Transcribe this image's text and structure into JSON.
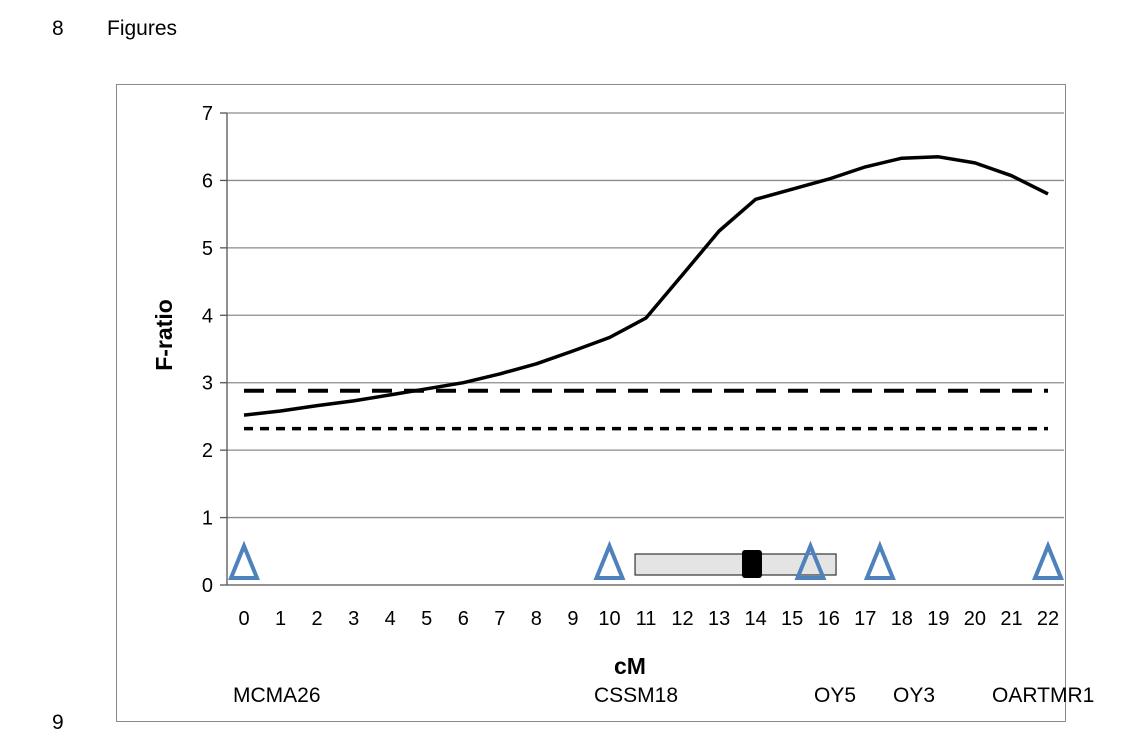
{
  "page": {
    "line_numbers": [
      "8",
      "9"
    ],
    "heading": "Figures"
  },
  "colors": {
    "line": "#000000",
    "grid": "#8c8c8c",
    "marker": "#4f81bd",
    "interval_fill": "#e4e4e4",
    "interval_stroke": "#333333"
  },
  "chart_data": {
    "type": "line",
    "xlabel": "cM",
    "ylabel": "F-ratio",
    "xlim": [
      0,
      22
    ],
    "ylim": [
      0,
      7
    ],
    "x_ticks": [
      0,
      1,
      2,
      3,
      4,
      5,
      6,
      7,
      8,
      9,
      10,
      11,
      12,
      13,
      14,
      15,
      16,
      17,
      18,
      19,
      20,
      21,
      22
    ],
    "y_ticks": [
      0,
      1,
      2,
      3,
      4,
      5,
      6,
      7
    ],
    "grid": "horizontal",
    "series": [
      {
        "style": "solid",
        "x": [
          0,
          1,
          2,
          3,
          4,
          5,
          6,
          7,
          8,
          9,
          10,
          11,
          12,
          13,
          14,
          15,
          16,
          17,
          18,
          19,
          20,
          21,
          22
        ],
        "y": [
          2.52,
          2.58,
          2.66,
          2.73,
          2.82,
          2.91,
          3.0,
          3.13,
          3.28,
          3.47,
          3.67,
          3.96,
          4.6,
          5.25,
          5.72,
          5.87,
          6.02,
          6.2,
          6.33,
          6.35,
          6.26,
          6.07,
          5.8
        ]
      },
      {
        "style": "dashed",
        "x": [
          0,
          22
        ],
        "y": [
          2.88,
          2.88
        ]
      },
      {
        "style": "dotted",
        "x": [
          0,
          22
        ],
        "y": [
          2.32,
          2.32
        ]
      }
    ],
    "confidence_interval": {
      "x_start": 10.7,
      "x_end": 16.2,
      "peak": 13.9
    },
    "markers": [
      {
        "name": "MCMA26",
        "x": 0
      },
      {
        "name": "CSSM18",
        "x": 10
      },
      {
        "name": "OY5",
        "x": 15.5
      },
      {
        "name": "OY3",
        "x": 17.4
      },
      {
        "name": "OARTMR1",
        "x": 22
      }
    ]
  }
}
